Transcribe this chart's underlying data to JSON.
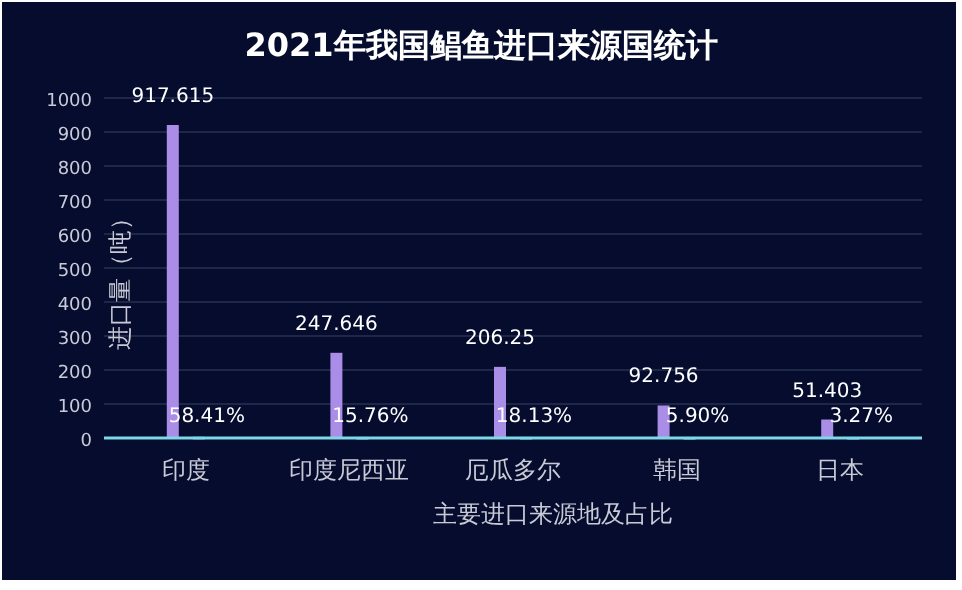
{
  "chart_data": {
    "type": "bar",
    "title": "2021年我国鲳鱼进口来源国统计",
    "xlabel": "主要进口来源地及占比",
    "ylabel": "进口量（吨）",
    "categories": [
      "印度",
      "印度尼西亚",
      "厄瓜多尔",
      "韩国",
      "日本"
    ],
    "series": [
      {
        "color": "#a98de6",
        "values": [
          917.615,
          247.646,
          206.25,
          92.756,
          51.403
        ],
        "value_labels": [
          "917.615",
          "247.646",
          "206.25",
          "92.756",
          "51.403"
        ]
      },
      {
        "color": "#4fd1e0",
        "values": [
          0.5841,
          0.1576,
          0.1813,
          0.059,
          0.0327
        ],
        "value_labels": [
          "58.41%",
          "15.76%",
          "18.13%",
          "5.90%",
          "3.27%"
        ]
      }
    ],
    "ylim": [
      0,
      1000
    ],
    "yticks": [
      0,
      100,
      200,
      300,
      400,
      500,
      600,
      700,
      800,
      900,
      1000
    ],
    "grid": "y"
  }
}
